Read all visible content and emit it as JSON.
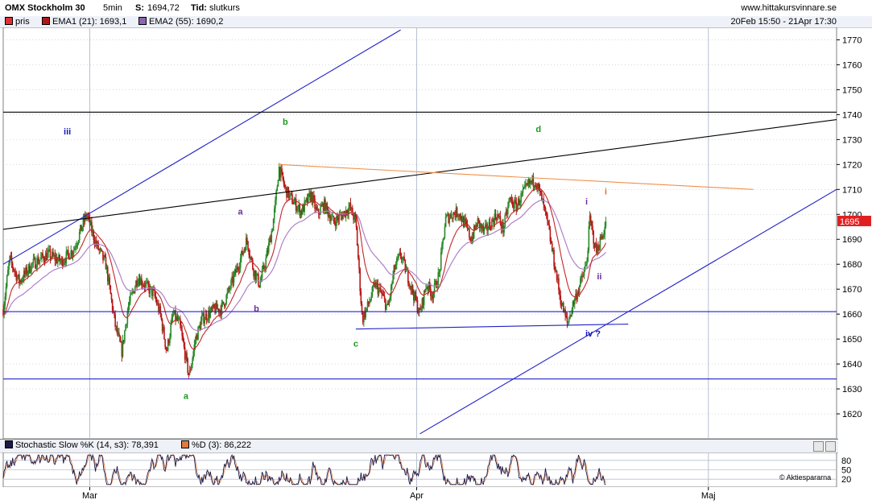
{
  "header": {
    "instrument": "OMX Stockholm 30",
    "interval": "5min",
    "s_label": "S:",
    "s_value": "1694,72",
    "tid_label": "Tid:",
    "tid_value": "slutkurs",
    "site": "www.hittakursvinnare.se",
    "date_range": "20Feb 15:50 - 21Apr 17:30"
  },
  "legend": [
    {
      "label": "pris",
      "color": "#e03030"
    },
    {
      "label": "EMA1 (21): 1693,1",
      "color": "#b01818"
    },
    {
      "label": "EMA2 (55): 1690,2",
      "color": "#8c64b4"
    }
  ],
  "stochastic": {
    "label_k": "Stochastic Slow %K (14, s3): 78,391",
    "label_d": "%D (3): 86,222",
    "color_k": "#1a1a4a",
    "color_d": "#e07a40",
    "levels": [
      "80",
      "50",
      "20"
    ],
    "credit": "© Aktiespararna"
  },
  "colors": {
    "up": "#2a8a2a",
    "down": "#b81818",
    "ema1": "#c02828",
    "ema2": "#b080c8",
    "trend_blue": "#2020c8",
    "trend_orange": "#f0904a",
    "trend_black": "#000000",
    "grid": "#b8c0d0",
    "wave_green": "#1a9a1a",
    "wave_blue": "#1818b8",
    "wave_purple": "#7030a0",
    "wave_orange": "#e07030"
  },
  "chart_data": {
    "type": "candlestick",
    "title": "OMX Stockholm 30",
    "ylim": [
      1610,
      1775
    ],
    "y_ticks": [
      1620,
      1630,
      1640,
      1650,
      1660,
      1670,
      1680,
      1690,
      1700,
      1710,
      1720,
      1730,
      1740,
      1750,
      1760,
      1770
    ],
    "x_labels": [
      "Mar",
      "Apr",
      "Maj"
    ],
    "last_price_label": "1695",
    "price_path": [
      [
        0,
        1662
      ],
      [
        2,
        1682
      ],
      [
        5,
        1673
      ],
      [
        9,
        1680
      ],
      [
        14,
        1684
      ],
      [
        18,
        1681
      ],
      [
        22,
        1686
      ],
      [
        26,
        1700
      ],
      [
        29,
        1688
      ],
      [
        32,
        1680
      ],
      [
        35,
        1655
      ],
      [
        37,
        1645
      ],
      [
        39,
        1663
      ],
      [
        42,
        1675
      ],
      [
        44,
        1672
      ],
      [
        47,
        1668
      ],
      [
        49,
        1660
      ],
      [
        51,
        1645
      ],
      [
        53,
        1660
      ],
      [
        55,
        1656
      ],
      [
        57,
        1642
      ],
      [
        58,
        1635
      ],
      [
        60,
        1650
      ],
      [
        62,
        1658
      ],
      [
        64,
        1660
      ],
      [
        66,
        1662
      ],
      [
        68,
        1662
      ],
      [
        70,
        1668
      ],
      [
        72,
        1675
      ],
      [
        74,
        1682
      ],
      [
        76,
        1690
      ],
      [
        78,
        1678
      ],
      [
        80,
        1672
      ],
      [
        82,
        1682
      ],
      [
        84,
        1695
      ],
      [
        85,
        1705
      ],
      [
        86,
        1719
      ],
      [
        88,
        1710
      ],
      [
        90,
        1706
      ],
      [
        93,
        1701
      ],
      [
        96,
        1708
      ],
      [
        98,
        1700
      ],
      [
        100,
        1704
      ],
      [
        103,
        1697
      ],
      [
        106,
        1700
      ],
      [
        108,
        1703
      ],
      [
        110,
        1697
      ],
      [
        112,
        1658
      ],
      [
        114,
        1664
      ],
      [
        116,
        1672
      ],
      [
        118,
        1668
      ],
      [
        120,
        1662
      ],
      [
        122,
        1678
      ],
      [
        124,
        1684
      ],
      [
        126,
        1676
      ],
      [
        128,
        1668
      ],
      [
        130,
        1660
      ],
      [
        132,
        1672
      ],
      [
        134,
        1668
      ],
      [
        136,
        1676
      ],
      [
        138,
        1698
      ],
      [
        140,
        1700
      ],
      [
        142,
        1701
      ],
      [
        144,
        1696
      ],
      [
        146,
        1690
      ],
      [
        148,
        1697
      ],
      [
        150,
        1693
      ],
      [
        152,
        1696
      ],
      [
        154,
        1700
      ],
      [
        156,
        1694
      ],
      [
        158,
        1706
      ],
      [
        160,
        1703
      ],
      [
        162,
        1708
      ],
      [
        164,
        1712
      ],
      [
        166,
        1714
      ],
      [
        168,
        1706
      ],
      [
        170,
        1695
      ],
      [
        172,
        1680
      ],
      [
        174,
        1665
      ],
      [
        176,
        1656
      ],
      [
        178,
        1665
      ],
      [
        180,
        1672
      ],
      [
        182,
        1680
      ],
      [
        183,
        1698
      ],
      [
        185,
        1685
      ],
      [
        187,
        1692
      ],
      [
        188,
        1696
      ]
    ],
    "series": [
      {
        "name": "pris"
      },
      {
        "name": "EMA1 (21)",
        "last": 1693.1
      },
      {
        "name": "EMA2 (55)",
        "last": 1690.2
      }
    ],
    "annotations": [
      {
        "text": "iii",
        "x": 20,
        "y": 1732,
        "color": "wave_blue"
      },
      {
        "text": "a",
        "x": 74,
        "y": 1700,
        "color": "wave_purple"
      },
      {
        "text": "b",
        "x": 79,
        "y": 1661,
        "color": "wave_purple"
      },
      {
        "text": "b",
        "x": 88,
        "y": 1736,
        "color": "wave_green"
      },
      {
        "text": "a",
        "x": 57,
        "y": 1626,
        "color": "wave_green"
      },
      {
        "text": "c",
        "x": 110,
        "y": 1647,
        "color": "wave_green"
      },
      {
        "text": "d",
        "x": 167,
        "y": 1733,
        "color": "wave_green"
      },
      {
        "text": "i",
        "x": 182,
        "y": 1704,
        "color": "wave_purple"
      },
      {
        "text": "ii",
        "x": 186,
        "y": 1674,
        "color": "wave_purple"
      },
      {
        "text": "i",
        "x": 188,
        "y": 1708,
        "color": "wave_orange"
      },
      {
        "text": "iv ?",
        "x": 184,
        "y": 1651,
        "color": "wave_blue"
      }
    ],
    "trendlines": [
      {
        "color": "trend_blue",
        "from": [
          0,
          1680
        ],
        "to": [
          124,
          1774
        ]
      },
      {
        "color": "trend_blue",
        "from": [
          130,
          1612
        ],
        "to": [
          260,
          1710
        ]
      },
      {
        "color": "trend_black",
        "from": [
          0,
          1694
        ],
        "to": [
          260,
          1738
        ]
      },
      {
        "color": "trend_orange",
        "from": [
          86,
          1720
        ],
        "to": [
          234,
          1710
        ]
      },
      {
        "color": "trend_blue",
        "from": [
          110,
          1654
        ],
        "to": [
          195,
          1656
        ]
      },
      {
        "color": "trend_black",
        "from": [
          0,
          1741
        ],
        "to": [
          260,
          1741
        ]
      },
      {
        "color": "trend_blue",
        "from": [
          0,
          1661
        ],
        "to": [
          260,
          1661
        ]
      },
      {
        "color": "trend_blue",
        "from": [
          0,
          1634
        ],
        "to": [
          260,
          1634
        ]
      }
    ]
  }
}
